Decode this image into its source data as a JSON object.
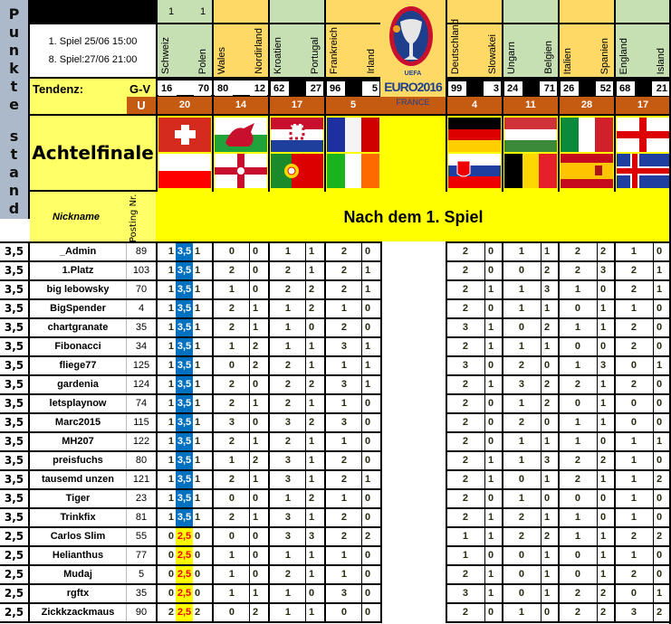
{
  "side_label_letters": [
    "P",
    "u",
    "n",
    "k",
    "t",
    "e",
    "s",
    "t",
    "a",
    "n",
    "d"
  ],
  "match_info": [
    "1. Spiel 25/06 15:00",
    "8. Spiel:27/06 21:00"
  ],
  "tendency_label": "Tendenz:",
  "gv_label": "G-V",
  "u_label": "U",
  "title": "Achtelfinale",
  "nickname_header": "Nickname",
  "posting_header": "Posting Nr.",
  "banner": "Nach dem 1. Spiel",
  "logo": {
    "uefa": "UEFA",
    "euro": "EURO2016",
    "country": "FRANCE"
  },
  "colors": {
    "green": "#c6e0b4",
    "gold": "#ffd966",
    "orange": "#c55a11",
    "blue_points": "#0070c0",
    "yellow": "#ffff00",
    "light_yellow": "#ffff66",
    "side": "#acb9ca"
  },
  "matches": [
    {
      "home": "Schweiz",
      "away": "Polen",
      "result": [
        "1",
        "1"
      ],
      "g": "16",
      "v": "70",
      "u": "20",
      "mid_dark": false,
      "color": "green",
      "flags": [
        "switzerland-flag",
        "poland-flag"
      ]
    },
    {
      "home": "Wales",
      "away": "Nordirland",
      "result": [
        "",
        ""
      ],
      "g": "80",
      "v": "12",
      "u": "14",
      "mid_dark": false,
      "color": "gold",
      "flags": [
        "wales-flag",
        "northern-ireland-flag"
      ]
    },
    {
      "home": "Kroatien",
      "away": "Portugal",
      "result": [
        "",
        ""
      ],
      "g": "62",
      "v": "27",
      "u": "17",
      "mid_dark": true,
      "color": "green",
      "flags": [
        "croatia-flag",
        "portugal-flag"
      ]
    },
    {
      "home": "Frankreich",
      "away": "Irland",
      "result": [
        "",
        ""
      ],
      "g": "96",
      "v": "5",
      "u": "5",
      "mid_dark": true,
      "color": "gold",
      "flags": [
        "france-flag",
        "ireland-flag"
      ]
    },
    {
      "home": "Deutschland",
      "away": "Slowakei",
      "result": [
        "",
        ""
      ],
      "g": "99",
      "v": "3",
      "u": "4",
      "mid_dark": true,
      "color": "gold",
      "flags": [
        "germany-flag",
        "slovakia-flag"
      ]
    },
    {
      "home": "Ungarn",
      "away": "Belgien",
      "result": [
        "",
        ""
      ],
      "g": "24",
      "v": "71",
      "u": "11",
      "mid_dark": true,
      "color": "green",
      "flags": [
        "hungary-flag",
        "belgium-flag"
      ]
    },
    {
      "home": "Italien",
      "away": "Spanien",
      "result": [
        "",
        ""
      ],
      "g": "26",
      "v": "52",
      "u": "28",
      "mid_dark": true,
      "color": "gold",
      "flags": [
        "italy-flag",
        "spain-flag"
      ]
    },
    {
      "home": "England",
      "away": "Island",
      "result": [
        "",
        ""
      ],
      "g": "68",
      "v": "21",
      "u": "17",
      "mid_dark": true,
      "color": "green",
      "flags": [
        "england-flag",
        "iceland-flag"
      ]
    }
  ],
  "rows": [
    {
      "points": "3,5",
      "nickname": "_Admin",
      "posting": "89",
      "m1_points": "3,5",
      "tips": [
        "1",
        "1",
        "0",
        "0",
        "1",
        "1",
        "2",
        "0",
        "2",
        "0",
        "1",
        "1",
        "2",
        "2",
        "1",
        "0"
      ]
    },
    {
      "points": "3,5",
      "nickname": "1.Platz",
      "posting": "103",
      "m1_points": "3,5",
      "tips": [
        "1",
        "1",
        "2",
        "0",
        "2",
        "1",
        "2",
        "1",
        "2",
        "0",
        "0",
        "2",
        "2",
        "3",
        "2",
        "1"
      ]
    },
    {
      "points": "3,5",
      "nickname": "big lebowsky",
      "posting": "70",
      "m1_points": "3,5",
      "tips": [
        "1",
        "1",
        "1",
        "0",
        "2",
        "2",
        "2",
        "1",
        "2",
        "1",
        "1",
        "3",
        "1",
        "0",
        "2",
        "1"
      ]
    },
    {
      "points": "3,5",
      "nickname": "BigSpender",
      "posting": "4",
      "m1_points": "3,5",
      "tips": [
        "1",
        "1",
        "2",
        "1",
        "1",
        "2",
        "1",
        "0",
        "2",
        "0",
        "1",
        "1",
        "0",
        "1",
        "1",
        "0"
      ]
    },
    {
      "points": "3,5",
      "nickname": "chartgranate",
      "posting": "35",
      "m1_points": "3,5",
      "tips": [
        "1",
        "1",
        "2",
        "1",
        "1",
        "0",
        "2",
        "0",
        "3",
        "1",
        "0",
        "2",
        "1",
        "1",
        "2",
        "0"
      ]
    },
    {
      "points": "3,5",
      "nickname": "Fibonacci",
      "posting": "34",
      "m1_points": "3,5",
      "tips": [
        "1",
        "1",
        "1",
        "2",
        "1",
        "1",
        "3",
        "1",
        "2",
        "1",
        "1",
        "1",
        "0",
        "0",
        "2",
        "0"
      ]
    },
    {
      "points": "3,5",
      "nickname": "fliege77",
      "posting": "125",
      "m1_points": "3,5",
      "tips": [
        "1",
        "1",
        "0",
        "2",
        "2",
        "1",
        "1",
        "1",
        "3",
        "0",
        "2",
        "0",
        "1",
        "3",
        "0",
        "1"
      ]
    },
    {
      "points": "3,5",
      "nickname": "gardenia",
      "posting": "124",
      "m1_points": "3,5",
      "tips": [
        "1",
        "1",
        "2",
        "0",
        "2",
        "2",
        "3",
        "1",
        "2",
        "1",
        "3",
        "2",
        "2",
        "1",
        "2",
        "0"
      ]
    },
    {
      "points": "3,5",
      "nickname": "letsplaynow",
      "posting": "74",
      "m1_points": "3,5",
      "tips": [
        "1",
        "1",
        "2",
        "1",
        "2",
        "1",
        "1",
        "0",
        "2",
        "0",
        "1",
        "2",
        "0",
        "1",
        "0",
        "0"
      ]
    },
    {
      "points": "3,5",
      "nickname": "Marc2015",
      "posting": "115",
      "m1_points": "3,5",
      "tips": [
        "1",
        "1",
        "3",
        "0",
        "3",
        "2",
        "3",
        "0",
        "2",
        "0",
        "2",
        "0",
        "1",
        "1",
        "0",
        "0"
      ]
    },
    {
      "points": "3,5",
      "nickname": "MH207",
      "posting": "122",
      "m1_points": "3,5",
      "tips": [
        "1",
        "1",
        "2",
        "1",
        "2",
        "1",
        "1",
        "0",
        "2",
        "0",
        "1",
        "1",
        "1",
        "0",
        "1",
        "1"
      ]
    },
    {
      "points": "3,5",
      "nickname": "preisfuchs",
      "posting": "80",
      "m1_points": "3,5",
      "tips": [
        "1",
        "1",
        "1",
        "2",
        "3",
        "1",
        "2",
        "0",
        "2",
        "1",
        "1",
        "3",
        "2",
        "2",
        "1",
        "0"
      ]
    },
    {
      "points": "3,5",
      "nickname": "tausemd unzen",
      "posting": "121",
      "m1_points": "3,5",
      "tips": [
        "1",
        "1",
        "2",
        "1",
        "3",
        "1",
        "2",
        "1",
        "2",
        "1",
        "0",
        "1",
        "2",
        "1",
        "1",
        "2"
      ]
    },
    {
      "points": "3,5",
      "nickname": "Tiger",
      "posting": "23",
      "m1_points": "3,5",
      "tips": [
        "1",
        "1",
        "0",
        "0",
        "1",
        "2",
        "1",
        "0",
        "2",
        "0",
        "1",
        "0",
        "0",
        "0",
        "1",
        "0"
      ]
    },
    {
      "points": "3,5",
      "nickname": "Trinkfix",
      "posting": "81",
      "m1_points": "3,5",
      "tips": [
        "1",
        "1",
        "2",
        "1",
        "3",
        "1",
        "2",
        "0",
        "2",
        "1",
        "2",
        "1",
        "1",
        "0",
        "1",
        "0"
      ]
    },
    {
      "points": "2,5",
      "nickname": "Carlos Slim",
      "posting": "55",
      "m1_points": "2,5",
      "tips": [
        "0",
        "0",
        "0",
        "0",
        "3",
        "3",
        "2",
        "2",
        "1",
        "1",
        "2",
        "2",
        "1",
        "1",
        "2",
        "2"
      ]
    },
    {
      "points": "2,5",
      "nickname": "Helianthus",
      "posting": "77",
      "m1_points": "2,5",
      "tips": [
        "0",
        "0",
        "1",
        "0",
        "1",
        "1",
        "1",
        "0",
        "1",
        "0",
        "0",
        "1",
        "0",
        "1",
        "1",
        "0"
      ]
    },
    {
      "points": "2,5",
      "nickname": "Mudaj",
      "posting": "5",
      "m1_points": "2,5",
      "tips": [
        "0",
        "0",
        "1",
        "0",
        "2",
        "1",
        "1",
        "0",
        "2",
        "1",
        "0",
        "1",
        "0",
        "1",
        "2",
        "0"
      ]
    },
    {
      "points": "2,5",
      "nickname": "rgftx",
      "posting": "35",
      "m1_points": "2,5",
      "tips": [
        "0",
        "0",
        "1",
        "1",
        "1",
        "0",
        "3",
        "0",
        "3",
        "1",
        "0",
        "1",
        "2",
        "2",
        "0",
        "1"
      ]
    },
    {
      "points": "2,5",
      "nickname": "Zickkzackmaus",
      "posting": "90",
      "m1_points": "2,5",
      "tips": [
        "2",
        "2",
        "0",
        "2",
        "1",
        "1",
        "0",
        "0",
        "2",
        "0",
        "1",
        "0",
        "2",
        "2",
        "3",
        "2"
      ]
    }
  ]
}
